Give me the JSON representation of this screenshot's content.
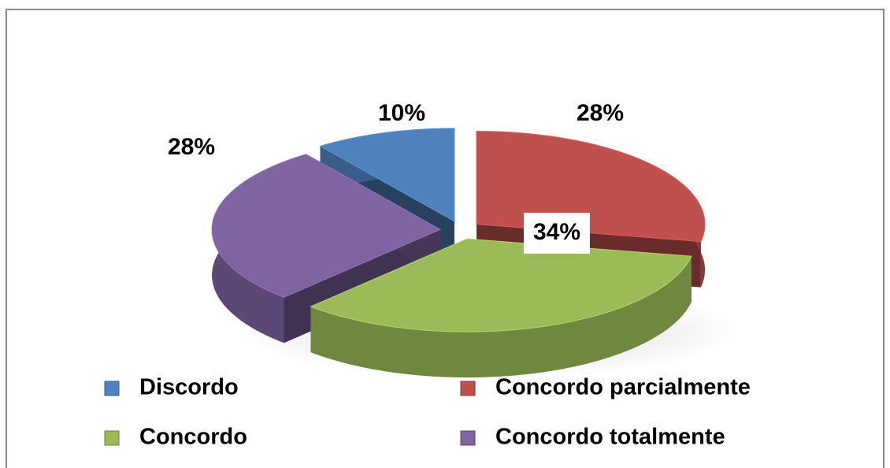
{
  "chart_data": {
    "type": "pie",
    "categories": [
      "Discordo",
      "Concordo parcialmente",
      "Concordo",
      "Concordo totalmente"
    ],
    "values": [
      10,
      28,
      34,
      28
    ],
    "value_labels": [
      "10%",
      "28%",
      "34%",
      "28%"
    ],
    "colors": [
      "#4f81bd",
      "#c0504d",
      "#9bbb59",
      "#8064a2"
    ],
    "legend": "bottom"
  }
}
